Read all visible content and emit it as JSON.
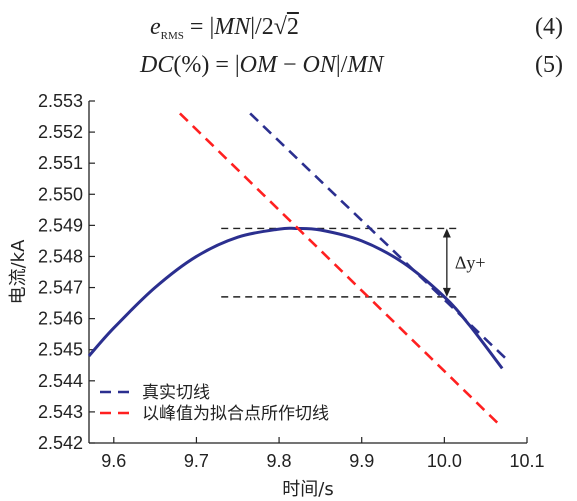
{
  "equations": [
    {
      "lhs": "e",
      "sub": "RMS",
      "rhs_pre": " = |",
      "rhs_mid": "MN",
      "rhs_post": "|/2",
      "sqrt": "2",
      "number": "(4)"
    },
    {
      "text_lhs": "DC",
      "text_mid": "(%) = |",
      "text_a": "OM",
      "text_op": " − ",
      "text_b": "ON",
      "text_end": "|/",
      "text_c": "MN",
      "number": "(5)"
    }
  ],
  "chart_data": {
    "type": "line",
    "xlabel": "时间/s",
    "ylabel": "电流/kA",
    "xlim": [
      9.57,
      10.1
    ],
    "ylim": [
      2.542,
      2.553
    ],
    "x_ticks": [
      9.6,
      9.7,
      9.8,
      9.9,
      10.0,
      10.1
    ],
    "x_tick_labels": [
      "9.6",
      "9.7",
      "9.8",
      "9.9",
      "10.0",
      "10.1"
    ],
    "y_ticks": [
      2.542,
      2.543,
      2.544,
      2.545,
      2.546,
      2.547,
      2.548,
      2.549,
      2.55,
      2.551,
      2.552,
      2.553
    ],
    "y_tick_labels": [
      "2.542",
      "2.543",
      "2.544",
      "2.545",
      "2.546",
      "2.547",
      "2.548",
      "2.549",
      "2.550",
      "2.551",
      "2.552",
      "2.553"
    ],
    "grid": false,
    "legend_position": "bottom-left",
    "series": [
      {
        "name": "",
        "kind": "curve",
        "color": "#2b2f8f",
        "style": "solid",
        "x": [
          9.57,
          9.6,
          9.65,
          9.7,
          9.75,
          9.8,
          9.82,
          9.85,
          9.9,
          9.95,
          10.0,
          10.03,
          10.07
        ],
        "y": [
          2.5448,
          2.5457,
          2.547,
          2.548,
          2.54862,
          2.54888,
          2.5489,
          2.54885,
          2.5485,
          2.5478,
          2.5467,
          2.5458,
          2.5444
        ]
      },
      {
        "name": "真实切线",
        "kind": "tangent",
        "color": "#2b2f8f",
        "style": "dashed",
        "x": [
          9.765,
          10.075
        ],
        "y": [
          2.5526,
          2.5447
        ]
      },
      {
        "name": "以峰值为拟合点所作切线",
        "kind": "tangent",
        "color": "#ff2020",
        "style": "dashed",
        "x": [
          9.68,
          10.07
        ],
        "y": [
          2.5526,
          2.5425
        ]
      }
    ],
    "reference_lines": [
      {
        "kind": "horizontal",
        "y": 2.5489,
        "x_from": 9.73,
        "x_to": 10.02,
        "color": "#222222",
        "style": "dashed"
      },
      {
        "kind": "horizontal",
        "y": 2.5467,
        "x_from": 9.73,
        "x_to": 10.02,
        "color": "#222222",
        "style": "dashed"
      }
    ],
    "annotations": [
      {
        "text": "Δy+",
        "x": 10.003,
        "y_from": 2.5467,
        "y_to": 2.5489,
        "kind": "double-arrow"
      }
    ]
  }
}
